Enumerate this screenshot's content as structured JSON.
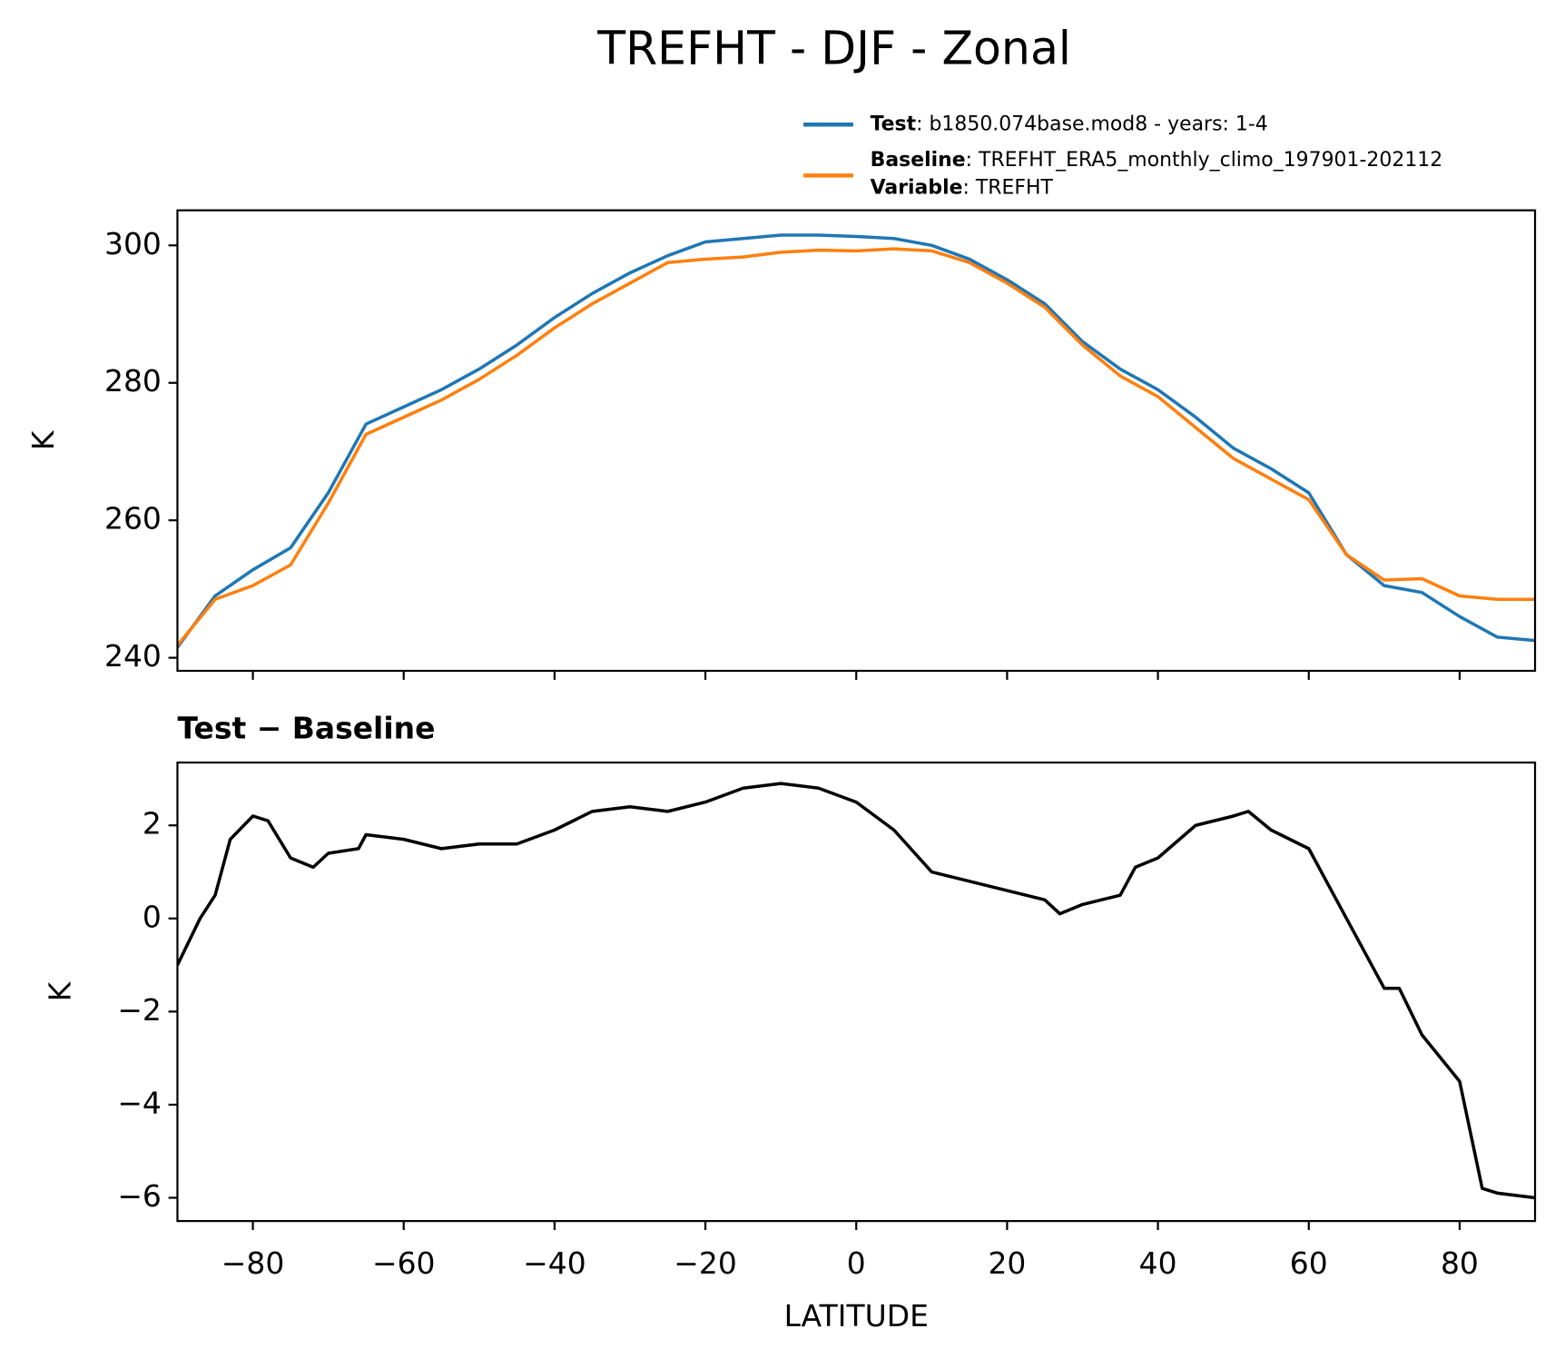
{
  "chart_data": [
    {
      "type": "line",
      "title": "TREFHT - DJF - Zonal",
      "ylabel": "K",
      "x": [
        -90,
        -85,
        -80,
        -75,
        -70,
        -65,
        -60,
        -55,
        -50,
        -45,
        -40,
        -35,
        -30,
        -25,
        -20,
        -15,
        -10,
        -5,
        0,
        5,
        10,
        15,
        20,
        25,
        30,
        35,
        40,
        45,
        50,
        55,
        60,
        65,
        70,
        75,
        80,
        85,
        90
      ],
      "series": [
        {
          "name": "Test",
          "description": ": b1850.074base.mod8 - years: 1-4",
          "color": "#1f77b4",
          "values": [
            241.5,
            249,
            252.8,
            256,
            264,
            274,
            276.5,
            279,
            282,
            285.5,
            289.5,
            293,
            296,
            298.5,
            300.5,
            301,
            301.5,
            301.5,
            301.3,
            301,
            300,
            298,
            295,
            291.5,
            286,
            282,
            279,
            275,
            270.5,
            267.5,
            264,
            255,
            250.5,
            249.5,
            246,
            243,
            242.5
          ]
        },
        {
          "name": "Baseline",
          "description": ": TREFHT_ERA5_monthly_climo_197901-202112",
          "color": "#ff7f0e",
          "values": [
            241.8,
            248.5,
            250.5,
            253.5,
            262.5,
            272.5,
            275,
            277.5,
            280.5,
            284,
            288,
            291.5,
            294.5,
            297.5,
            298,
            298.3,
            299,
            299.3,
            299.2,
            299.5,
            299.2,
            297.5,
            294.5,
            291,
            285.5,
            281,
            278,
            273.5,
            269,
            266,
            263,
            255,
            251.3,
            251.5,
            249,
            248.5,
            248.5
          ]
        }
      ],
      "legend_extra": {
        "name": "Variable",
        "description": ": TREFHT"
      },
      "xlim": [
        -90,
        90
      ],
      "xticks": [
        -80,
        -60,
        -40,
        -20,
        0,
        20,
        40,
        60,
        80
      ],
      "ylim": [
        238.1,
        305.1
      ],
      "yticks": [
        240,
        260,
        280,
        300
      ]
    },
    {
      "type": "line",
      "subtitle": "Test − Baseline",
      "ylabel": "K",
      "xlabel": "LATITUDE",
      "x": [
        -90,
        -87,
        -85,
        -83,
        -80,
        -78,
        -75,
        -72,
        -70,
        -66,
        -65,
        -60,
        -55,
        -50,
        -45,
        -40,
        -35,
        -30,
        -25,
        -20,
        -15,
        -10,
        -5,
        0,
        5,
        10,
        15,
        20,
        25,
        27,
        30,
        35,
        37,
        40,
        45,
        50,
        52,
        55,
        60,
        65,
        70,
        72,
        75,
        80,
        83,
        85,
        90
      ],
      "series": [
        {
          "name": "Test − Baseline",
          "color": "#000000",
          "values": [
            -1,
            0,
            0.5,
            1.7,
            2.2,
            2.1,
            1.3,
            1.1,
            1.4,
            1.5,
            1.8,
            1.7,
            1.5,
            1.6,
            1.6,
            1.9,
            2.3,
            2.4,
            2.3,
            2.5,
            2.8,
            2.9,
            2.8,
            2.5,
            1.9,
            1.0,
            0.8,
            0.6,
            0.4,
            0.1,
            0.3,
            0.5,
            1.1,
            1.3,
            2.0,
            2.2,
            2.3,
            1.9,
            1.5,
            0.0,
            -1.5,
            -1.5,
            -2.5,
            -3.5,
            -5.8,
            -5.9,
            -6.0
          ]
        }
      ],
      "xlim": [
        -90,
        90
      ],
      "xticks": [
        {
          "value": -80,
          "label": "−80"
        },
        {
          "value": -60,
          "label": "−60"
        },
        {
          "value": -40,
          "label": "−40"
        },
        {
          "value": -20,
          "label": "−20"
        },
        0,
        20,
        40,
        60,
        80
      ],
      "ylim": [
        -6.5,
        3.35
      ],
      "yticks": [
        {
          "value": -6,
          "label": "−6"
        },
        {
          "value": -4,
          "label": "−4"
        },
        {
          "value": -2,
          "label": "−2"
        },
        0,
        2
      ]
    }
  ]
}
